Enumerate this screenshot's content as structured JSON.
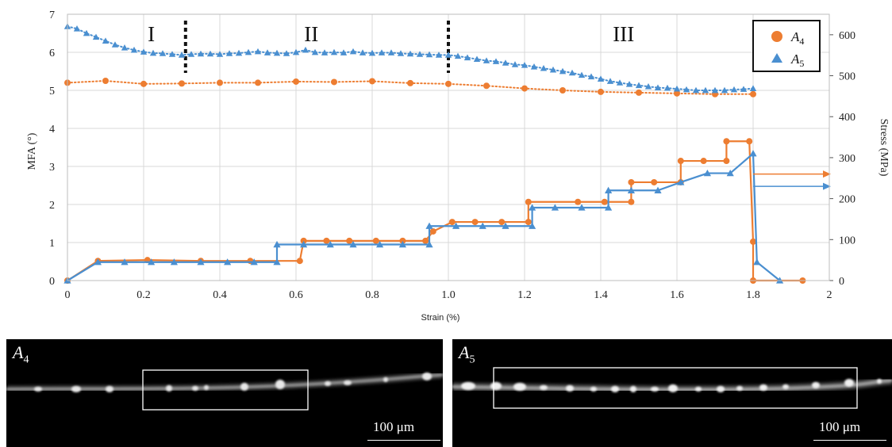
{
  "chart_data": {
    "type": "line",
    "xlabel": "Strain (%)",
    "ylabel_left": "MFA (°)",
    "ylabel_right": "Stress (MPa)",
    "xlim": [
      0,
      2
    ],
    "ylim_left": [
      0,
      7
    ],
    "ylim_right": [
      0,
      650
    ],
    "xticks": [
      "0",
      "0.2",
      "0.4",
      "0.6",
      "0.8",
      "1.0",
      "1.2",
      "1.4",
      "1.6",
      "1.8",
      "2"
    ],
    "yticks_left": [
      "0",
      "1",
      "2",
      "3",
      "4",
      "5",
      "6",
      "7"
    ],
    "yticks_right": [
      "0",
      "100",
      "200",
      "300",
      "400",
      "500",
      "600"
    ],
    "grid": true,
    "legend_position": "top-right",
    "regions": [
      "I",
      "II",
      "III"
    ],
    "region_boundaries": [
      0.31,
      1.0
    ],
    "colors": {
      "A4": "#ED7D31",
      "A5": "#4A8FD0"
    },
    "mfa_series": [
      {
        "name": "A4",
        "axis": "left",
        "marker": "circle",
        "x": [
          0,
          0.1,
          0.2,
          0.3,
          0.4,
          0.5,
          0.6,
          0.7,
          0.8,
          0.9,
          1.0,
          1.1,
          1.2,
          1.3,
          1.4,
          1.5,
          1.6,
          1.7,
          1.8
        ],
        "y": [
          5.2,
          5.25,
          5.17,
          5.18,
          5.2,
          5.2,
          5.23,
          5.22,
          5.24,
          5.19,
          5.17,
          5.12,
          5.05,
          5.0,
          4.96,
          4.94,
          4.92,
          4.9,
          4.9
        ]
      },
      {
        "name": "A5",
        "axis": "left",
        "marker": "triangle",
        "x": [
          0,
          0.025,
          0.05,
          0.075,
          0.1,
          0.125,
          0.15,
          0.175,
          0.2,
          0.225,
          0.25,
          0.275,
          0.3,
          0.325,
          0.35,
          0.375,
          0.4,
          0.425,
          0.45,
          0.475,
          0.5,
          0.525,
          0.55,
          0.575,
          0.6,
          0.625,
          0.65,
          0.675,
          0.7,
          0.725,
          0.75,
          0.775,
          0.8,
          0.825,
          0.85,
          0.875,
          0.9,
          0.925,
          0.95,
          0.975,
          1.0,
          1.025,
          1.05,
          1.075,
          1.1,
          1.125,
          1.15,
          1.175,
          1.2,
          1.225,
          1.25,
          1.275,
          1.3,
          1.325,
          1.35,
          1.375,
          1.4,
          1.425,
          1.45,
          1.475,
          1.5,
          1.525,
          1.55,
          1.575,
          1.6,
          1.625,
          1.65,
          1.675,
          1.7,
          1.725,
          1.75,
          1.775,
          1.8
        ],
        "y": [
          6.68,
          6.62,
          6.5,
          6.4,
          6.3,
          6.2,
          6.12,
          6.06,
          6.01,
          5.98,
          5.97,
          5.95,
          5.93,
          5.95,
          5.96,
          5.96,
          5.95,
          5.97,
          5.98,
          6.0,
          6.02,
          5.99,
          5.98,
          5.97,
          6.0,
          6.06,
          6.0,
          5.99,
          6.0,
          5.99,
          6.02,
          5.99,
          5.98,
          5.99,
          5.99,
          5.97,
          5.96,
          5.95,
          5.94,
          5.93,
          5.93,
          5.9,
          5.86,
          5.82,
          5.78,
          5.76,
          5.72,
          5.68,
          5.66,
          5.62,
          5.58,
          5.54,
          5.5,
          5.46,
          5.4,
          5.36,
          5.3,
          5.24,
          5.2,
          5.16,
          5.13,
          5.1,
          5.07,
          5.06,
          5.04,
          5.02,
          5.0,
          5.0,
          5.0,
          5.0,
          5.02,
          5.03,
          5.05
        ]
      }
    ],
    "stress_series": [
      {
        "name": "A4",
        "axis": "right",
        "marker": "circle",
        "x": [
          0,
          0.08,
          0.21,
          0.35,
          0.48,
          0.61,
          0.62,
          0.68,
          0.74,
          0.81,
          0.88,
          0.94,
          0.96,
          1.01,
          1.07,
          1.14,
          1.21,
          1.21,
          1.34,
          1.41,
          1.48,
          1.48,
          1.54,
          1.61,
          1.61,
          1.67,
          1.73,
          1.73,
          1.79,
          1.8,
          1.8,
          1.93
        ],
        "y": [
          0,
          48,
          50,
          48,
          48,
          48,
          97,
          97,
          97,
          97,
          97,
          97,
          120,
          143,
          143,
          143,
          143,
          192,
          192,
          192,
          192,
          240,
          240,
          240,
          292,
          292,
          292,
          340,
          340,
          95,
          0,
          0
        ]
      },
      {
        "name": "A5",
        "axis": "right",
        "marker": "triangle",
        "x": [
          0,
          0.08,
          0.15,
          0.22,
          0.28,
          0.35,
          0.42,
          0.49,
          0.55,
          0.55,
          0.62,
          0.69,
          0.75,
          0.82,
          0.88,
          0.95,
          0.95,
          1.02,
          1.09,
          1.15,
          1.22,
          1.22,
          1.28,
          1.35,
          1.42,
          1.42,
          1.48,
          1.55,
          1.61,
          1.68,
          1.74,
          1.8,
          1.81,
          1.87
        ],
        "y": [
          0,
          45,
          45,
          45,
          45,
          45,
          45,
          45,
          45,
          88,
          88,
          88,
          88,
          88,
          88,
          88,
          133,
          133,
          133,
          133,
          133,
          178,
          178,
          178,
          178,
          220,
          220,
          220,
          240,
          262,
          262,
          310,
          45,
          0
        ]
      }
    ],
    "stress_arrows": [
      {
        "name": "A4",
        "y": 260
      },
      {
        "name": "A5",
        "y": 230
      }
    ]
  },
  "panels": [
    {
      "label": "A",
      "label_sub": "4",
      "scale_text": "100 μm"
    },
    {
      "label": "A",
      "label_sub": "5",
      "scale_text": "100 μm"
    }
  ]
}
